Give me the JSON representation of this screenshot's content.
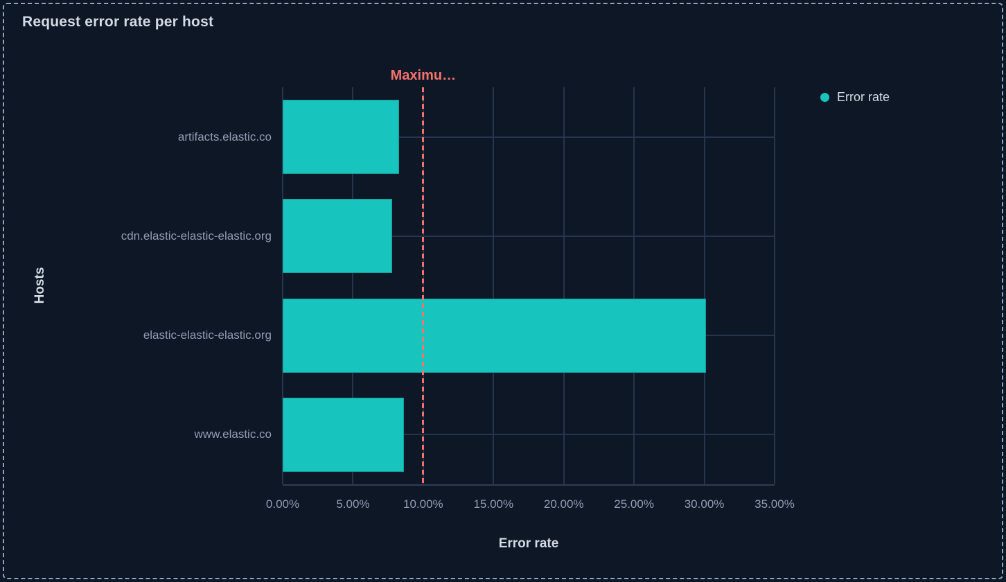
{
  "panel": {
    "title": "Request error rate per host"
  },
  "legend": {
    "items": [
      {
        "label": "Error rate",
        "color": "#17c4be"
      }
    ]
  },
  "chart_data": {
    "type": "bar",
    "orientation": "horizontal",
    "title": "Request error rate per host",
    "xlabel": "Error rate",
    "ylabel": "Hosts",
    "categories": [
      "artifacts.elastic.co",
      "cdn.elastic-elastic-elastic.org",
      "elastic-elastic-elastic.org",
      "www.elastic.co"
    ],
    "series": [
      {
        "name": "Error rate",
        "values": [
          8.3,
          7.8,
          30.1,
          8.65
        ]
      }
    ],
    "values_unit": "%",
    "xlim": [
      0,
      35
    ],
    "x_tick_values": [
      0,
      5,
      10,
      15,
      20,
      25,
      30,
      35
    ],
    "x_ticks": [
      "0.00%",
      "5.00%",
      "10.00%",
      "15.00%",
      "20.00%",
      "25.00%",
      "30.00%",
      "35.00%"
    ],
    "grid": true,
    "legend_position": "top-right",
    "threshold": {
      "value": 10,
      "label": "Maximu…",
      "color": "#f6726a"
    },
    "bar_color": "#17c4be"
  },
  "colors": {
    "background": "#0d1726",
    "panel_border": "#8fa3c4",
    "bar": "#17c4be",
    "threshold": "#f6726a",
    "title_text": "#d3dae5",
    "axis_label_text": "#939db2",
    "gridline": "#27344e",
    "axis_line": "#2e3c58"
  }
}
